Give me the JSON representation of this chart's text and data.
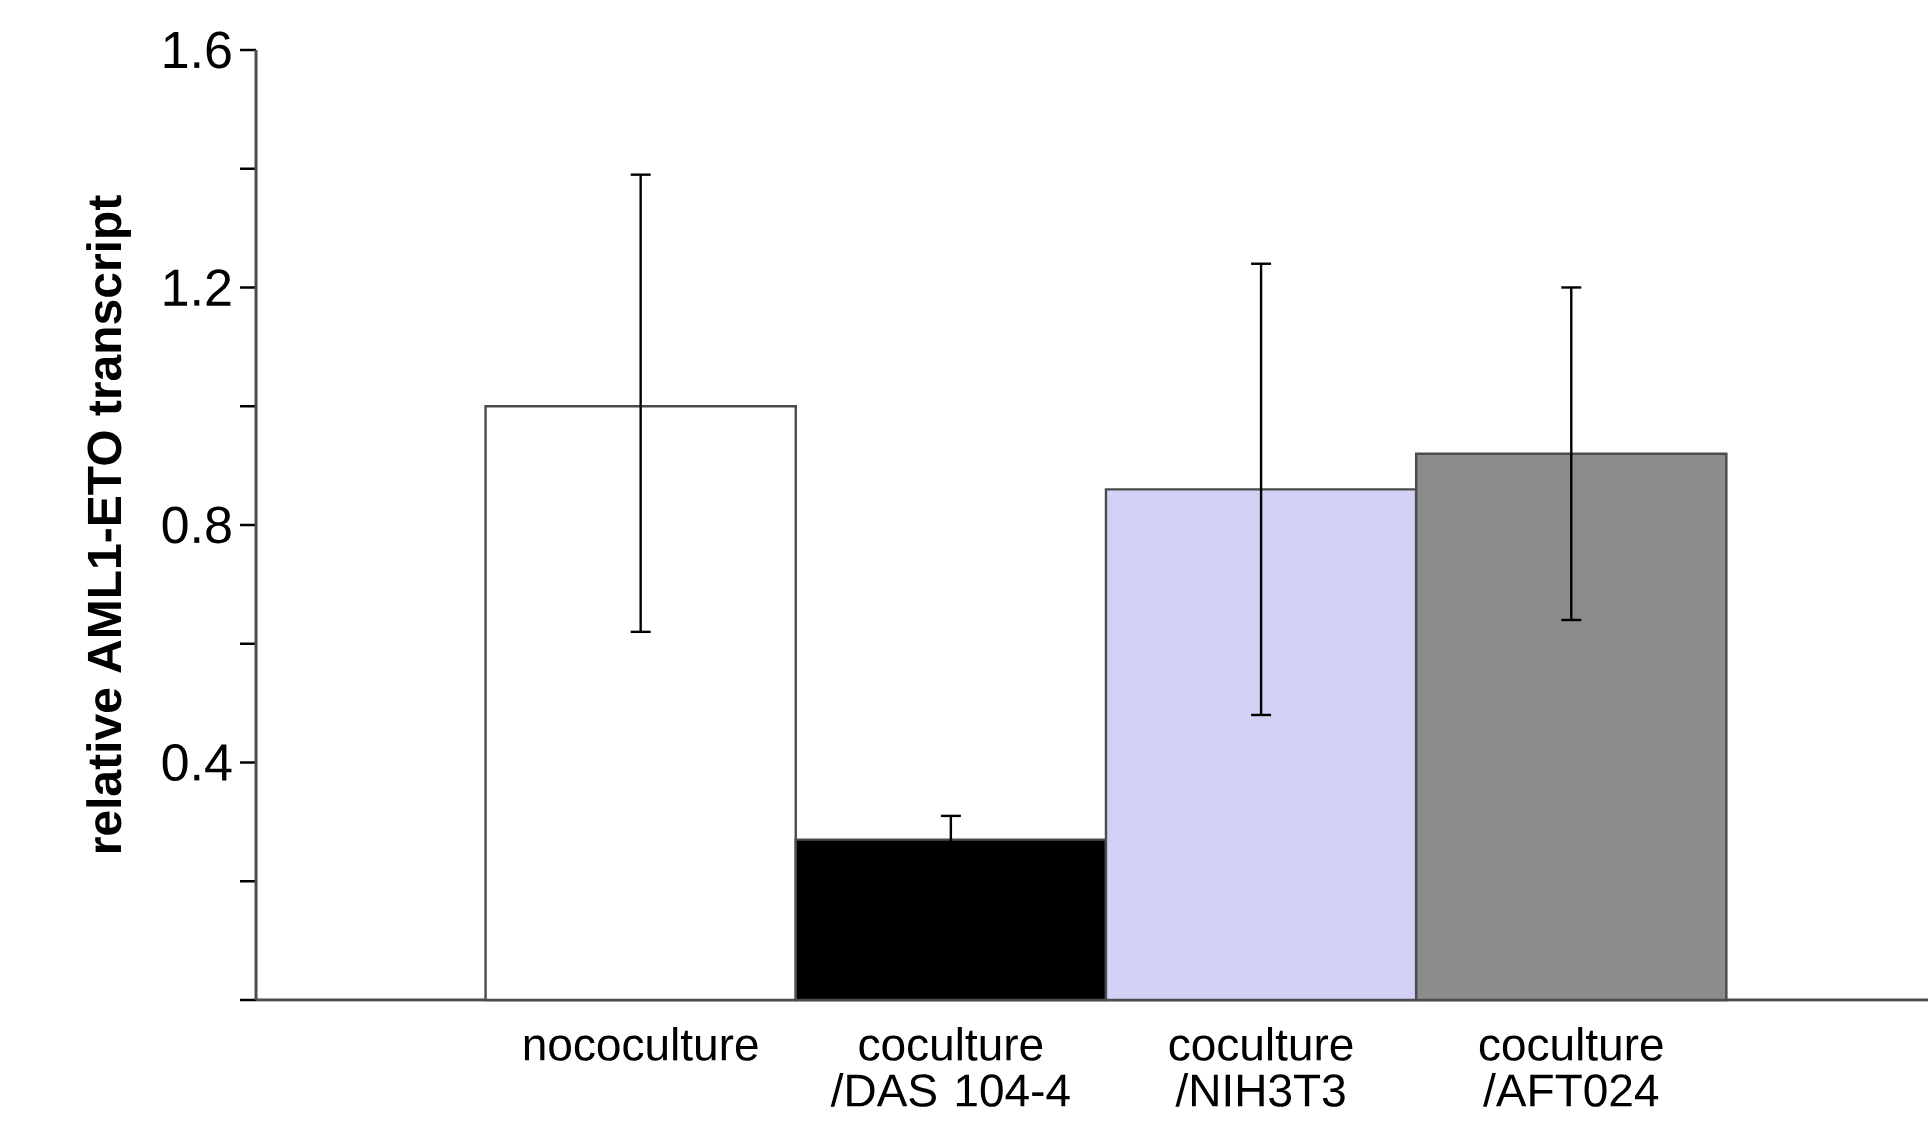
{
  "chart_data": {
    "type": "bar",
    "ylabel": "relative  AML1-ETO transcript",
    "categories": [
      "nococulture",
      "coculture /DAS 104-4",
      "coculture /NIH3T3",
      "coculture /AFT024"
    ],
    "values": [
      1.0,
      0.27,
      0.86,
      0.92
    ],
    "colors": [
      "#ffffff",
      "#000000",
      "#d2d2f7",
      "#8c8c8c"
    ],
    "errors": [
      [
        0.62,
        1.39
      ],
      0.04,
      [
        0.48,
        1.24
      ],
      [
        0.64,
        1.2
      ]
    ],
    "ylim": [
      0,
      1.6
    ],
    "yticks": [
      {
        "value": 0,
        "label": null
      },
      {
        "value": 0.2,
        "label": null
      },
      0.4,
      {
        "value": 0.6,
        "label": null
      },
      0.8,
      {
        "value": 1.0,
        "label": null
      },
      1.2,
      {
        "value": 1.4,
        "label": null
      },
      1.6
    ],
    "grid": false
  }
}
